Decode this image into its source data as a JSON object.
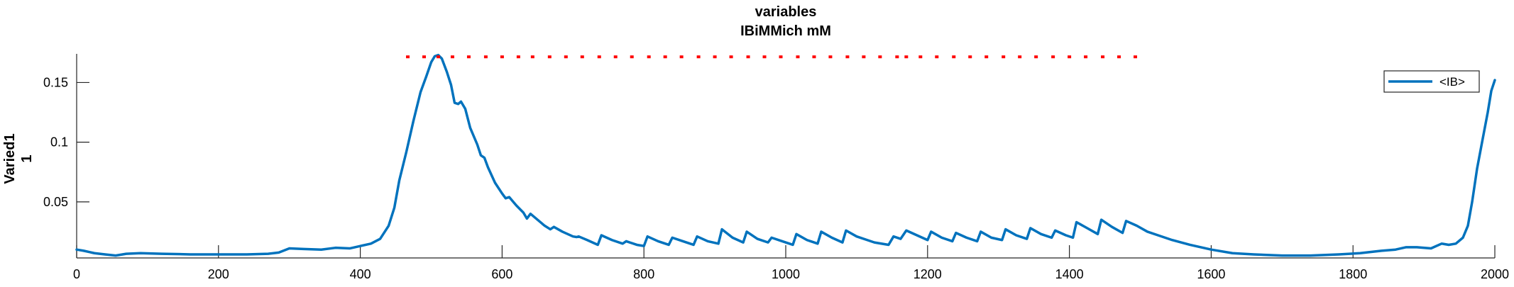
{
  "chart_data": {
    "type": "line",
    "title": [
      "variables",
      "IBiMMich mM"
    ],
    "xlabel": "",
    "ylabel": [
      "Varied1",
      "1"
    ],
    "xlim": [
      0,
      2000
    ],
    "ylim": [
      0.003,
      0.174
    ],
    "xticks": [
      0,
      200,
      400,
      600,
      800,
      1000,
      1200,
      1400,
      1600,
      1800,
      2000
    ],
    "yticks": [
      0.05,
      0.1,
      0.15
    ],
    "ytick_labels": [
      "0.05",
      "0.1",
      "0.15"
    ],
    "grid": false,
    "legend_position": "top-right",
    "series": [
      {
        "name": "<IB>",
        "color": "#0072BD",
        "points": [
          [
            0,
            0.01
          ],
          [
            10,
            0.009
          ],
          [
            25,
            0.007
          ],
          [
            40,
            0.006
          ],
          [
            55,
            0.005
          ],
          [
            70,
            0.0065
          ],
          [
            90,
            0.007
          ],
          [
            120,
            0.0065
          ],
          [
            160,
            0.006
          ],
          [
            200,
            0.006
          ],
          [
            240,
            0.006
          ],
          [
            270,
            0.0065
          ],
          [
            285,
            0.0075
          ],
          [
            300,
            0.011
          ],
          [
            320,
            0.0105
          ],
          [
            345,
            0.01
          ],
          [
            365,
            0.0115
          ],
          [
            385,
            0.011
          ],
          [
            400,
            0.013
          ],
          [
            415,
            0.015
          ],
          [
            428,
            0.019
          ],
          [
            440,
            0.03
          ],
          [
            448,
            0.045
          ],
          [
            455,
            0.068
          ],
          [
            465,
            0.092
          ],
          [
            475,
            0.118
          ],
          [
            485,
            0.142
          ],
          [
            493,
            0.155
          ],
          [
            500,
            0.167
          ],
          [
            505,
            0.172
          ],
          [
            510,
            0.173
          ],
          [
            515,
            0.17
          ],
          [
            522,
            0.159
          ],
          [
            528,
            0.148
          ],
          [
            533,
            0.133
          ],
          [
            538,
            0.132
          ],
          [
            542,
            0.134
          ],
          [
            548,
            0.128
          ],
          [
            555,
            0.112
          ],
          [
            565,
            0.098
          ],
          [
            570,
            0.089
          ],
          [
            575,
            0.087
          ],
          [
            580,
            0.079
          ],
          [
            590,
            0.066
          ],
          [
            600,
            0.057
          ],
          [
            605,
            0.053
          ],
          [
            610,
            0.054
          ],
          [
            620,
            0.047
          ],
          [
            630,
            0.041
          ],
          [
            635,
            0.036
          ],
          [
            640,
            0.04
          ],
          [
            648,
            0.036
          ],
          [
            660,
            0.03
          ],
          [
            668,
            0.027
          ],
          [
            673,
            0.029
          ],
          [
            685,
            0.025
          ],
          [
            700,
            0.021
          ],
          [
            705,
            0.0205
          ],
          [
            708,
            0.021
          ],
          [
            720,
            0.018
          ],
          [
            735,
            0.014
          ],
          [
            740,
            0.022
          ],
          [
            755,
            0.018
          ],
          [
            770,
            0.015
          ],
          [
            775,
            0.017
          ],
          [
            790,
            0.014
          ],
          [
            800,
            0.013
          ],
          [
            805,
            0.021
          ],
          [
            820,
            0.017
          ],
          [
            835,
            0.014
          ],
          [
            840,
            0.02
          ],
          [
            855,
            0.017
          ],
          [
            870,
            0.014
          ],
          [
            875,
            0.021
          ],
          [
            890,
            0.017
          ],
          [
            905,
            0.015
          ],
          [
            910,
            0.027
          ],
          [
            925,
            0.02
          ],
          [
            940,
            0.016
          ],
          [
            945,
            0.025
          ],
          [
            960,
            0.019
          ],
          [
            975,
            0.016
          ],
          [
            980,
            0.02
          ],
          [
            995,
            0.017
          ],
          [
            1010,
            0.014
          ],
          [
            1015,
            0.023
          ],
          [
            1030,
            0.018
          ],
          [
            1045,
            0.015
          ],
          [
            1050,
            0.025
          ],
          [
            1065,
            0.02
          ],
          [
            1080,
            0.016
          ],
          [
            1085,
            0.026
          ],
          [
            1100,
            0.021
          ],
          [
            1115,
            0.018
          ],
          [
            1125,
            0.016
          ],
          [
            1145,
            0.014
          ],
          [
            1152,
            0.021
          ],
          [
            1162,
            0.019
          ],
          [
            1170,
            0.026
          ],
          [
            1185,
            0.022
          ],
          [
            1200,
            0.018
          ],
          [
            1205,
            0.025
          ],
          [
            1220,
            0.02
          ],
          [
            1235,
            0.017
          ],
          [
            1240,
            0.024
          ],
          [
            1255,
            0.02
          ],
          [
            1270,
            0.017
          ],
          [
            1275,
            0.025
          ],
          [
            1290,
            0.02
          ],
          [
            1305,
            0.018
          ],
          [
            1310,
            0.027
          ],
          [
            1325,
            0.022
          ],
          [
            1340,
            0.019
          ],
          [
            1345,
            0.028
          ],
          [
            1360,
            0.023
          ],
          [
            1375,
            0.02
          ],
          [
            1380,
            0.026
          ],
          [
            1395,
            0.022
          ],
          [
            1405,
            0.02
          ],
          [
            1410,
            0.033
          ],
          [
            1425,
            0.028
          ],
          [
            1440,
            0.023
          ],
          [
            1445,
            0.035
          ],
          [
            1460,
            0.029
          ],
          [
            1475,
            0.024
          ],
          [
            1480,
            0.034
          ],
          [
            1495,
            0.03
          ],
          [
            1510,
            0.025
          ],
          [
            1525,
            0.022
          ],
          [
            1545,
            0.018
          ],
          [
            1570,
            0.014
          ],
          [
            1600,
            0.01
          ],
          [
            1630,
            0.007
          ],
          [
            1660,
            0.006
          ],
          [
            1700,
            0.005
          ],
          [
            1740,
            0.005
          ],
          [
            1780,
            0.006
          ],
          [
            1810,
            0.007
          ],
          [
            1840,
            0.009
          ],
          [
            1860,
            0.01
          ],
          [
            1875,
            0.012
          ],
          [
            1890,
            0.012
          ],
          [
            1910,
            0.011
          ],
          [
            1925,
            0.015
          ],
          [
            1935,
            0.014
          ],
          [
            1945,
            0.015
          ],
          [
            1955,
            0.02
          ],
          [
            1962,
            0.03
          ],
          [
            1968,
            0.05
          ],
          [
            1975,
            0.078
          ],
          [
            1982,
            0.1
          ],
          [
            1990,
            0.125
          ],
          [
            1995,
            0.143
          ],
          [
            2000,
            0.152
          ]
        ]
      },
      {
        "name": "",
        "color": "#FF0000",
        "style": "dots",
        "y": 0.1715,
        "x": [
          467,
          490,
          510,
          530,
          553,
          577,
          600,
          623,
          643,
          667,
          690,
          713,
          737,
          760,
          783,
          807,
          830,
          853,
          877,
          900,
          923,
          947,
          970,
          993,
          1017,
          1040,
          1063,
          1087,
          1110,
          1133,
          1157,
          1170,
          1190,
          1213,
          1237,
          1260,
          1283,
          1307,
          1330,
          1353,
          1377,
          1400,
          1423,
          1447,
          1470,
          1493
        ]
      }
    ]
  }
}
